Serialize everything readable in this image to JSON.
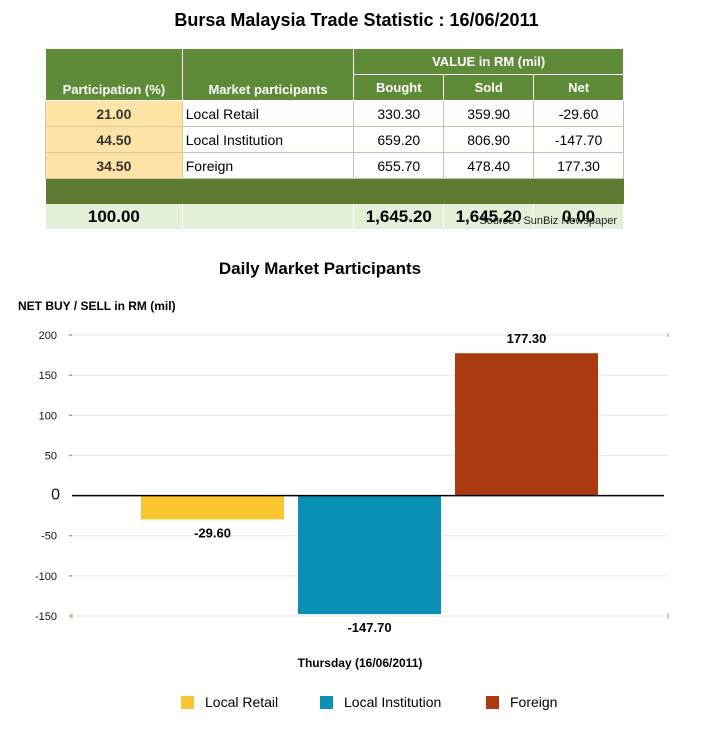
{
  "title": "Bursa Malaysia Trade Statistic : 16/06/2011",
  "table": {
    "value_header": "VALUE in RM (mil)",
    "col_participation": "Participation (%)",
    "col_participants": "Market participants",
    "col_bought": "Bought",
    "col_sold": "Sold",
    "col_net": "Net",
    "rows": [
      {
        "participation": "21.00",
        "participant": "Local Retail",
        "bought": "330.30",
        "sold": "359.90",
        "net": "-29.60"
      },
      {
        "participation": "44.50",
        "participant": "Local Institution",
        "bought": "659.20",
        "sold": "806.90",
        "net": "-147.70"
      },
      {
        "participation": "34.50",
        "participant": "Foreign",
        "bought": "655.70",
        "sold": "478.40",
        "net": "177.30"
      }
    ],
    "total": {
      "participation": "100.00",
      "bought": "1,645.20",
      "sold": "1,645.20",
      "net": "0.00"
    }
  },
  "source": "Source : SunBiz Newspaper",
  "colors": {
    "header_green": "#5f8a38",
    "local_retail": "#fbc52f",
    "local_institution": "#0a90b4",
    "foreign": "#ac3a11"
  },
  "chart_data": {
    "type": "bar",
    "title": "Daily Market Participants",
    "ylabel": "NET BUY / SELL in RM (mil)",
    "xlabel": "Thursday (16/06/2011)",
    "ylim": [
      -150,
      200
    ],
    "yticks": [
      "200",
      "150",
      "100",
      "50",
      "0",
      "-50",
      "-100",
      "-150"
    ],
    "legend_position": "bottom",
    "series": [
      {
        "name": "Local Retail",
        "value": -29.6,
        "label": "-29.60",
        "color": "#fbc52f"
      },
      {
        "name": "Local Institution",
        "value": -147.7,
        "label": "-147.70",
        "color": "#0a90b4"
      },
      {
        "name": "Foreign",
        "value": 177.3,
        "label": "177.30",
        "color": "#ac3a11"
      }
    ]
  }
}
